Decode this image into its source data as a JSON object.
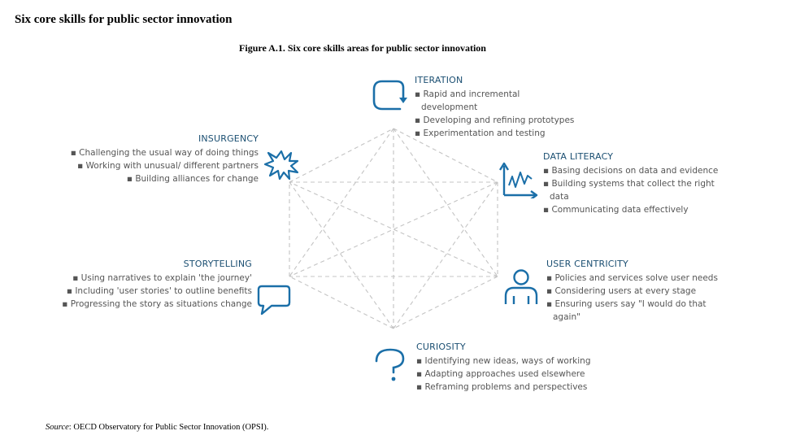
{
  "heading": "Six core skills for public sector innovation",
  "figure_title": "Figure A.1. Six core skills areas for public sector innovation",
  "accent_color": "#1b6fa8",
  "line_color": "#c4c4c4",
  "skills": {
    "iteration": {
      "title": "ITERATION",
      "icon": "cycle-arrow-icon",
      "items": [
        "Rapid and incremental",
        "development",
        "Developing and refining prototypes",
        "Experimentation and testing"
      ]
    },
    "data_literacy": {
      "title": "DATA LITERACY",
      "icon": "line-graph-icon",
      "items": [
        "Basing decisions on data and evidence",
        "Building systems that collect the right",
        "data",
        "Communicating data effectively"
      ]
    },
    "user_centricity": {
      "title": "USER CENTRICITY",
      "icon": "person-icon",
      "items": [
        "Policies and services solve user needs",
        "Considering users at every stage",
        "Ensuring users say \"I would do that",
        "again\""
      ]
    },
    "curiosity": {
      "title": "CURIOSITY",
      "icon": "question-mark-icon",
      "items": [
        "Identifying new ideas, ways of working",
        "Adapting approaches used elsewhere",
        "Reframing problems and perspectives"
      ]
    },
    "storytelling": {
      "title": "STORYTELLING",
      "icon": "speech-bubble-icon",
      "items": [
        "Using narratives to explain 'the journey'",
        "Including 'user stories' to outline benefits",
        "Progressing the story as situations change"
      ]
    },
    "insurgency": {
      "title": "INSURGENCY",
      "icon": "starburst-icon",
      "items": [
        "Challenging the usual way of doing things",
        "Working with unusual/ different partners",
        "Building alliances for change"
      ]
    }
  },
  "source_label": "Source",
  "source_text": ": OECD Observatory for Public Sector Innovation (OPSI)."
}
